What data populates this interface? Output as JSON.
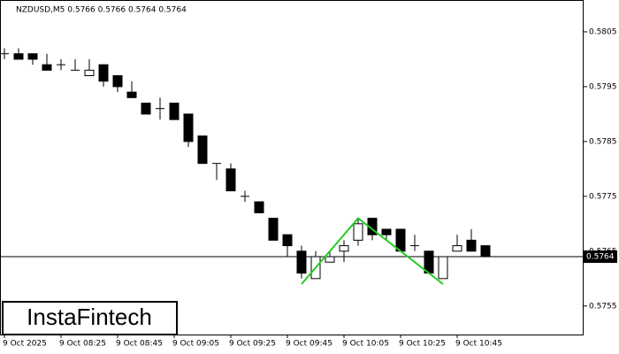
{
  "chart_data": {
    "type": "candlestick",
    "title": "NZDUSD,M5  0.5766 0.5766 0.5764 0.5764",
    "watermark": "InstaFintech",
    "categories": [
      "9 Oct 2025",
      null,
      null,
      null,
      "9 Oct 08:25",
      null,
      null,
      null,
      "9 Oct 08:45",
      null,
      null,
      null,
      "9 Oct 09:05",
      null,
      null,
      null,
      "9 Oct 09:25",
      null,
      null,
      null,
      "9 Oct 09:45",
      null,
      null,
      null,
      "9 Oct 10:05",
      null,
      null,
      null,
      "9 Oct 10:25",
      null,
      null,
      null,
      "9 Oct 10:45",
      null,
      null
    ],
    "open": [
      0.5801,
      0.5801,
      0.5801,
      0.5799,
      0.5799,
      0.5798,
      0.5797,
      0.5799,
      0.5797,
      0.5794,
      0.5792,
      0.5791,
      0.5792,
      0.579,
      0.5786,
      0.5781,
      0.578,
      0.5775,
      0.5774,
      0.5771,
      0.5768,
      0.5765,
      0.576,
      0.5763,
      0.5765,
      0.5767,
      0.5771,
      0.5769,
      0.5769,
      0.5766,
      0.5765,
      0.576,
      0.5765,
      0.5767,
      0.5766
    ],
    "high": [
      0.5802,
      0.5802,
      0.5801,
      0.5801,
      0.58,
      0.58,
      0.58,
      0.5799,
      0.5797,
      0.5796,
      0.5792,
      0.5793,
      0.5792,
      0.579,
      0.5786,
      0.5781,
      0.5781,
      0.5776,
      0.5774,
      0.5771,
      0.5768,
      0.5766,
      0.5765,
      0.5765,
      0.5767,
      0.5771,
      0.5771,
      0.5769,
      0.5769,
      0.5768,
      0.5765,
      0.5764,
      0.5768,
      0.5769,
      0.5766
    ],
    "low": [
      0.58,
      0.58,
      0.5799,
      0.5798,
      0.5798,
      0.5798,
      0.5797,
      0.5795,
      0.5794,
      0.5793,
      0.579,
      0.5789,
      0.5789,
      0.5784,
      0.5781,
      0.5778,
      0.5776,
      0.5774,
      0.5772,
      0.5767,
      0.5764,
      0.576,
      0.576,
      0.5763,
      0.5763,
      0.5766,
      0.5767,
      0.5767,
      0.5765,
      0.5765,
      0.5761,
      0.576,
      0.5765,
      0.5765,
      0.5764
    ],
    "close": [
      0.5801,
      0.58,
      0.58,
      0.5798,
      0.5799,
      0.5798,
      0.5798,
      0.5796,
      0.5795,
      0.5793,
      0.579,
      0.5791,
      0.5789,
      0.5785,
      0.5781,
      0.5781,
      0.5776,
      0.5775,
      0.5772,
      0.5767,
      0.5766,
      0.5761,
      0.5764,
      0.5764,
      0.5766,
      0.577,
      0.5768,
      0.5768,
      0.5765,
      0.5766,
      0.5761,
      0.5764,
      0.5766,
      0.5765,
      0.5764
    ],
    "ylim": [
      0.57498,
      0.58108
    ],
    "yticks": [
      0.5755,
      0.5765,
      0.5775,
      0.5785,
      0.5795,
      0.5805
    ],
    "current_price": 0.5764,
    "pattern": {
      "color": "#22cc22",
      "points": [
        {
          "index": 21,
          "value": 0.5759
        },
        {
          "index": 25,
          "value": 0.5771
        },
        {
          "index": 31,
          "value": 0.5759
        }
      ]
    }
  }
}
